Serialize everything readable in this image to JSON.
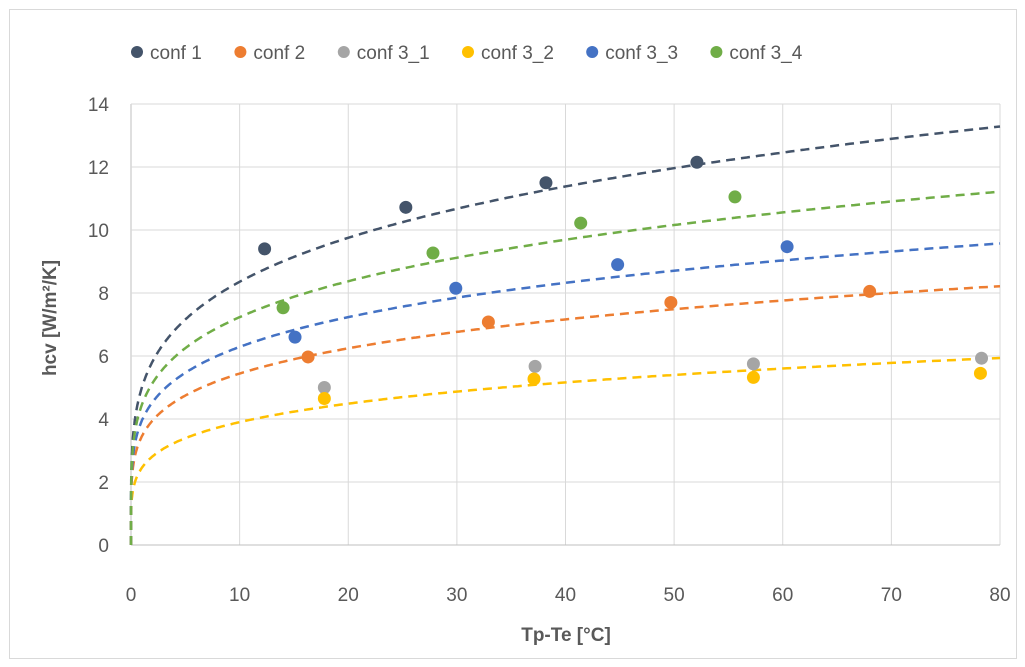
{
  "chart_data": {
    "type": "scatter",
    "title": "",
    "xlabel": "Tp-Te [°C]",
    "ylabel": "hcv [W/m²/K]",
    "xlim": [
      0,
      80
    ],
    "ylim": [
      0,
      14
    ],
    "x_ticks": [
      "0",
      "10",
      "20",
      "30",
      "40",
      "50",
      "60",
      "70",
      "80"
    ],
    "y_ticks": [
      "0",
      "2",
      "4",
      "6",
      "8",
      "10",
      "12",
      "14"
    ],
    "grid": true,
    "legend_position": "top",
    "trendline_style": "dashed",
    "series": [
      {
        "name": "conf 1",
        "color": "#44546a",
        "points": [
          [
            12.3,
            9.4
          ],
          [
            25.3,
            10.72
          ],
          [
            38.2,
            11.5
          ],
          [
            52.1,
            12.15
          ]
        ],
        "trend": {
          "type": "power",
          "a": 5.0,
          "b": 0.223
        }
      },
      {
        "name": "conf 2",
        "color": "#ed7d31",
        "points": [
          [
            16.3,
            5.97
          ],
          [
            32.9,
            7.08
          ],
          [
            49.7,
            7.7
          ],
          [
            68.0,
            8.05
          ]
        ],
        "trend": {
          "type": "power",
          "a": 3.45,
          "b": 0.198
        }
      },
      {
        "name": "conf 3_1",
        "color": "#a5a5a5",
        "points": [
          [
            17.8,
            5.0
          ],
          [
            37.2,
            5.67
          ],
          [
            57.3,
            5.75
          ],
          [
            78.3,
            5.93
          ]
        ]
      },
      {
        "name": "conf 3_2",
        "color": "#ffc000",
        "points": [
          [
            17.8,
            4.65
          ],
          [
            37.1,
            5.27
          ],
          [
            57.3,
            5.32
          ],
          [
            78.2,
            5.45
          ]
        ],
        "trend": {
          "type": "power",
          "a": 2.45,
          "b": 0.202
        }
      },
      {
        "name": "conf 3_3",
        "color": "#4472c4",
        "points": [
          [
            15.1,
            6.6
          ],
          [
            29.9,
            8.15
          ],
          [
            44.8,
            8.9
          ],
          [
            60.4,
            9.47
          ]
        ],
        "trend": {
          "type": "power",
          "a": 3.95,
          "b": 0.202
        }
      },
      {
        "name": "conf 3_4",
        "color": "#70ad47",
        "points": [
          [
            14.0,
            7.53
          ],
          [
            27.8,
            9.27
          ],
          [
            41.4,
            10.22
          ],
          [
            55.6,
            11.05
          ]
        ],
        "trend": {
          "type": "power",
          "a": 4.45,
          "b": 0.211
        }
      }
    ]
  }
}
